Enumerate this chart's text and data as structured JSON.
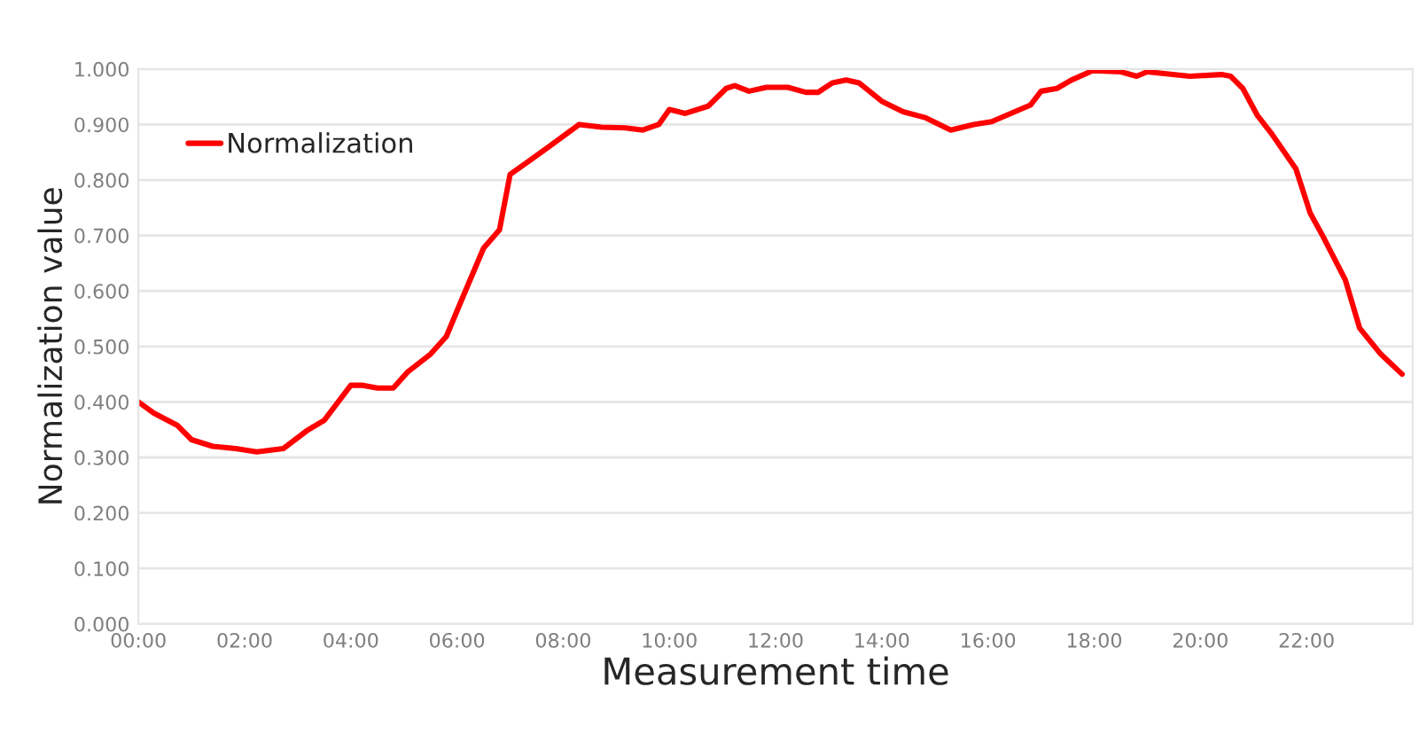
{
  "chart_data": {
    "type": "line",
    "xlabel": "Measurement time",
    "ylabel": "Normalization value",
    "xlim": [
      0,
      24
    ],
    "xticks": [
      {
        "value": 0,
        "label": "00:00"
      },
      {
        "value": 2,
        "label": "02:00"
      },
      {
        "value": 4,
        "label": "04:00"
      },
      {
        "value": 6,
        "label": "06:00"
      },
      {
        "value": 8,
        "label": "08:00"
      },
      {
        "value": 10,
        "label": "10:00"
      },
      {
        "value": 12,
        "label": "12:00"
      },
      {
        "value": 14,
        "label": "14:00"
      },
      {
        "value": 16,
        "label": "16:00"
      },
      {
        "value": 18,
        "label": "18:00"
      },
      {
        "value": 20,
        "label": "20:00"
      },
      {
        "value": 22,
        "label": "22:00"
      }
    ],
    "ylim": [
      0,
      1.0
    ],
    "yticks": [
      {
        "value": 0,
        "label": "0.000"
      },
      {
        "value": 0.1,
        "label": "0.100"
      },
      {
        "value": 0.2,
        "label": "0.200"
      },
      {
        "value": 0.3,
        "label": "0.300"
      },
      {
        "value": 0.4,
        "label": "0.400"
      },
      {
        "value": 0.5,
        "label": "0.500"
      },
      {
        "value": 0.6,
        "label": "0.600"
      },
      {
        "value": 0.7,
        "label": "0.700"
      },
      {
        "value": 0.8,
        "label": "0.800"
      },
      {
        "value": 0.9,
        "label": "0.900"
      },
      {
        "value": 1.0,
        "label": "1.000"
      }
    ],
    "grid": "y",
    "legend": "top left",
    "marker": "none",
    "line_style": "solid",
    "series": [
      {
        "name": "Normalization",
        "color": "#ff0000",
        "x": [
          0,
          0.29,
          0.73,
          1.0,
          1.4,
          1.83,
          2.23,
          2.73,
          3.17,
          3.5,
          4.0,
          4.23,
          4.5,
          4.8,
          5.07,
          5.5,
          5.8,
          6.07,
          6.5,
          6.8,
          7.0,
          7.4,
          7.73,
          8.3,
          8.73,
          9.17,
          9.5,
          9.8,
          10.0,
          10.3,
          10.73,
          11.07,
          11.23,
          11.5,
          11.83,
          12.23,
          12.57,
          12.8,
          13.07,
          13.33,
          13.57,
          14.0,
          14.4,
          14.83,
          15.3,
          15.73,
          16.07,
          16.8,
          17.0,
          17.3,
          17.57,
          17.97,
          18.5,
          18.8,
          19.0,
          19.8,
          20.4,
          20.57,
          20.8,
          21.07,
          21.33,
          21.8,
          22.07,
          22.3,
          22.73,
          23.0,
          23.4,
          23.8
        ],
        "values": [
          0.4,
          0.38,
          0.358,
          0.332,
          0.32,
          0.316,
          0.31,
          0.316,
          0.348,
          0.367,
          0.43,
          0.43,
          0.425,
          0.425,
          0.454,
          0.486,
          0.518,
          0.58,
          0.677,
          0.71,
          0.81,
          0.837,
          0.86,
          0.9,
          0.895,
          0.894,
          0.89,
          0.9,
          0.927,
          0.92,
          0.933,
          0.965,
          0.97,
          0.96,
          0.967,
          0.967,
          0.958,
          0.958,
          0.975,
          0.98,
          0.975,
          0.942,
          0.923,
          0.912,
          0.89,
          0.9,
          0.905,
          0.935,
          0.96,
          0.965,
          0.98,
          0.997,
          0.995,
          0.987,
          0.995,
          0.987,
          0.99,
          0.987,
          0.965,
          0.917,
          0.885,
          0.82,
          0.74,
          0.7,
          0.62,
          0.533,
          0.486,
          0.45
        ]
      }
    ]
  }
}
